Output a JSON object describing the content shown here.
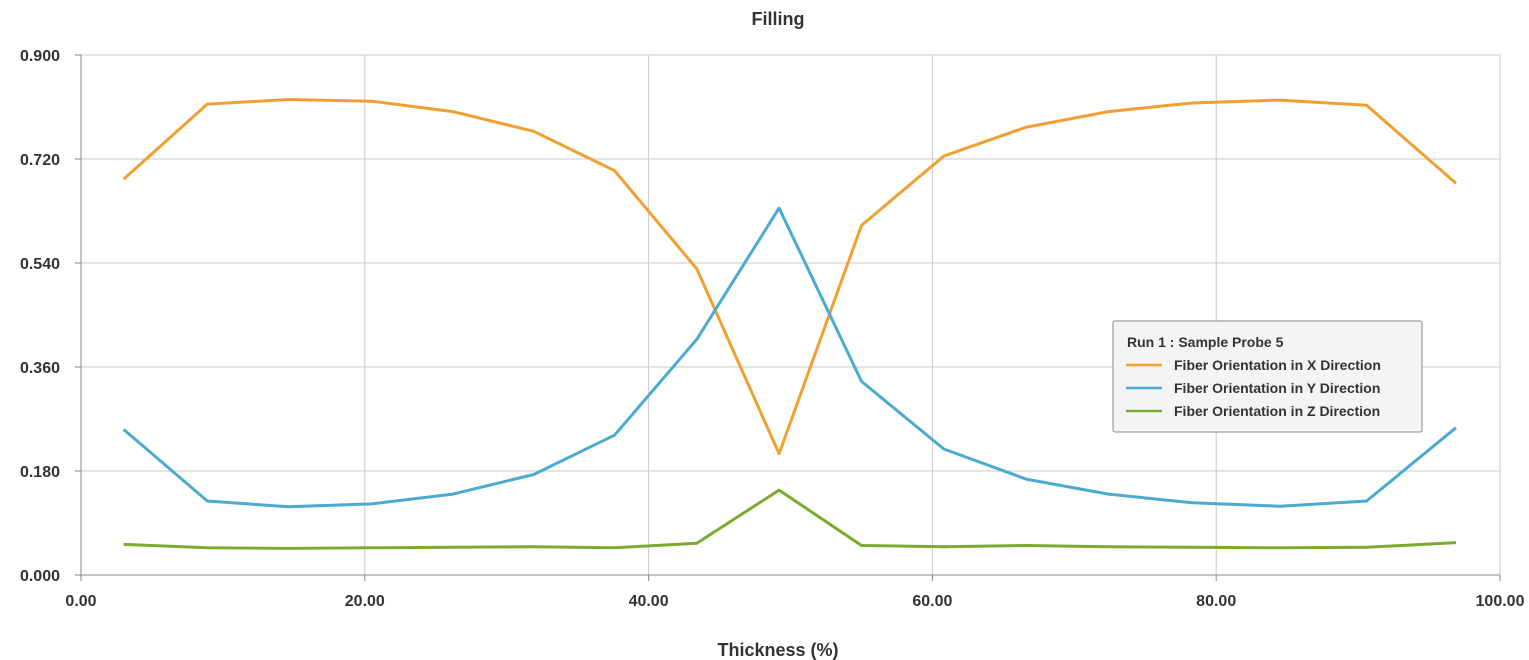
{
  "chart_data": {
    "type": "line",
    "title": "Filling",
    "xlabel": "Thickness (%)",
    "ylabel": "",
    "xlim": [
      0,
      100
    ],
    "ylim": [
      0,
      0.9
    ],
    "x_ticks": [
      "0.00",
      "20.00",
      "40.00",
      "60.00",
      "80.00",
      "100.00"
    ],
    "y_ticks": [
      "0.000",
      "0.180",
      "0.360",
      "0.540",
      "0.720",
      "0.900"
    ],
    "grid": true,
    "legend": {
      "title": "Run 1 : Sample Probe 5",
      "placement": "right"
    },
    "x": [
      3.0,
      8.9,
      14.6,
      20.5,
      26.2,
      31.9,
      37.6,
      43.4,
      49.2,
      55.0,
      60.8,
      66.6,
      72.4,
      78.3,
      84.5,
      90.6,
      96.9
    ],
    "series": [
      {
        "name": "Fiber Orientation in X Direction",
        "color": "#f0a030",
        "values": [
          0.685,
          0.815,
          0.823,
          0.82,
          0.802,
          0.768,
          0.7,
          0.53,
          0.21,
          0.605,
          0.725,
          0.775,
          0.802,
          0.817,
          0.822,
          0.813,
          0.678
        ]
      },
      {
        "name": "Fiber Orientation in Y Direction",
        "color": "#4aaad0",
        "values": [
          0.252,
          0.128,
          0.118,
          0.123,
          0.14,
          0.174,
          0.242,
          0.408,
          0.635,
          0.335,
          0.218,
          0.166,
          0.14,
          0.125,
          0.119,
          0.128,
          0.255
        ]
      },
      {
        "name": "Fiber Orientation in Z Direction",
        "color": "#7aaa30",
        "values": [
          0.053,
          0.047,
          0.046,
          0.047,
          0.048,
          0.049,
          0.047,
          0.055,
          0.147,
          0.051,
          0.049,
          0.051,
          0.049,
          0.048,
          0.047,
          0.048,
          0.056
        ]
      }
    ]
  }
}
